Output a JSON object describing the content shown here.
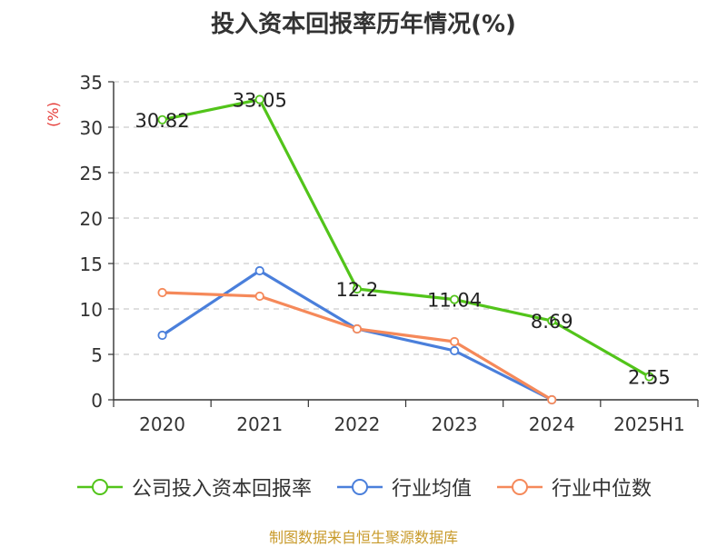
{
  "title": "投入资本回报率历年情况(%)",
  "source": "制图数据来自恒生聚源数据库",
  "chart_data": {
    "type": "line",
    "title": "投入资本回报率历年情况(%)",
    "ylabel": "(%)",
    "xlabel": "",
    "ylim": [
      0,
      35
    ],
    "yticks": [
      0,
      5,
      10,
      15,
      20,
      25,
      30,
      35
    ],
    "grid": true,
    "legend_position": "bottom",
    "categories": [
      "2020",
      "2021",
      "2022",
      "2023",
      "2024",
      "2025H1"
    ],
    "series": [
      {
        "name": "公司投入资本回报率",
        "color": "#52c41a",
        "values": [
          30.82,
          33.05,
          12.2,
          11.04,
          8.69,
          2.55
        ],
        "labels": [
          "30.82",
          "33.05",
          "12.2",
          "11.04",
          "8.69",
          "2.55"
        ]
      },
      {
        "name": "行业均值",
        "color": "#4a7fdb",
        "values": [
          7.1,
          14.2,
          7.8,
          5.4,
          0.0,
          null
        ]
      },
      {
        "name": "行业中位数",
        "color": "#f5895a",
        "values": [
          11.8,
          11.4,
          7.8,
          6.4,
          0.0,
          null
        ]
      }
    ]
  }
}
